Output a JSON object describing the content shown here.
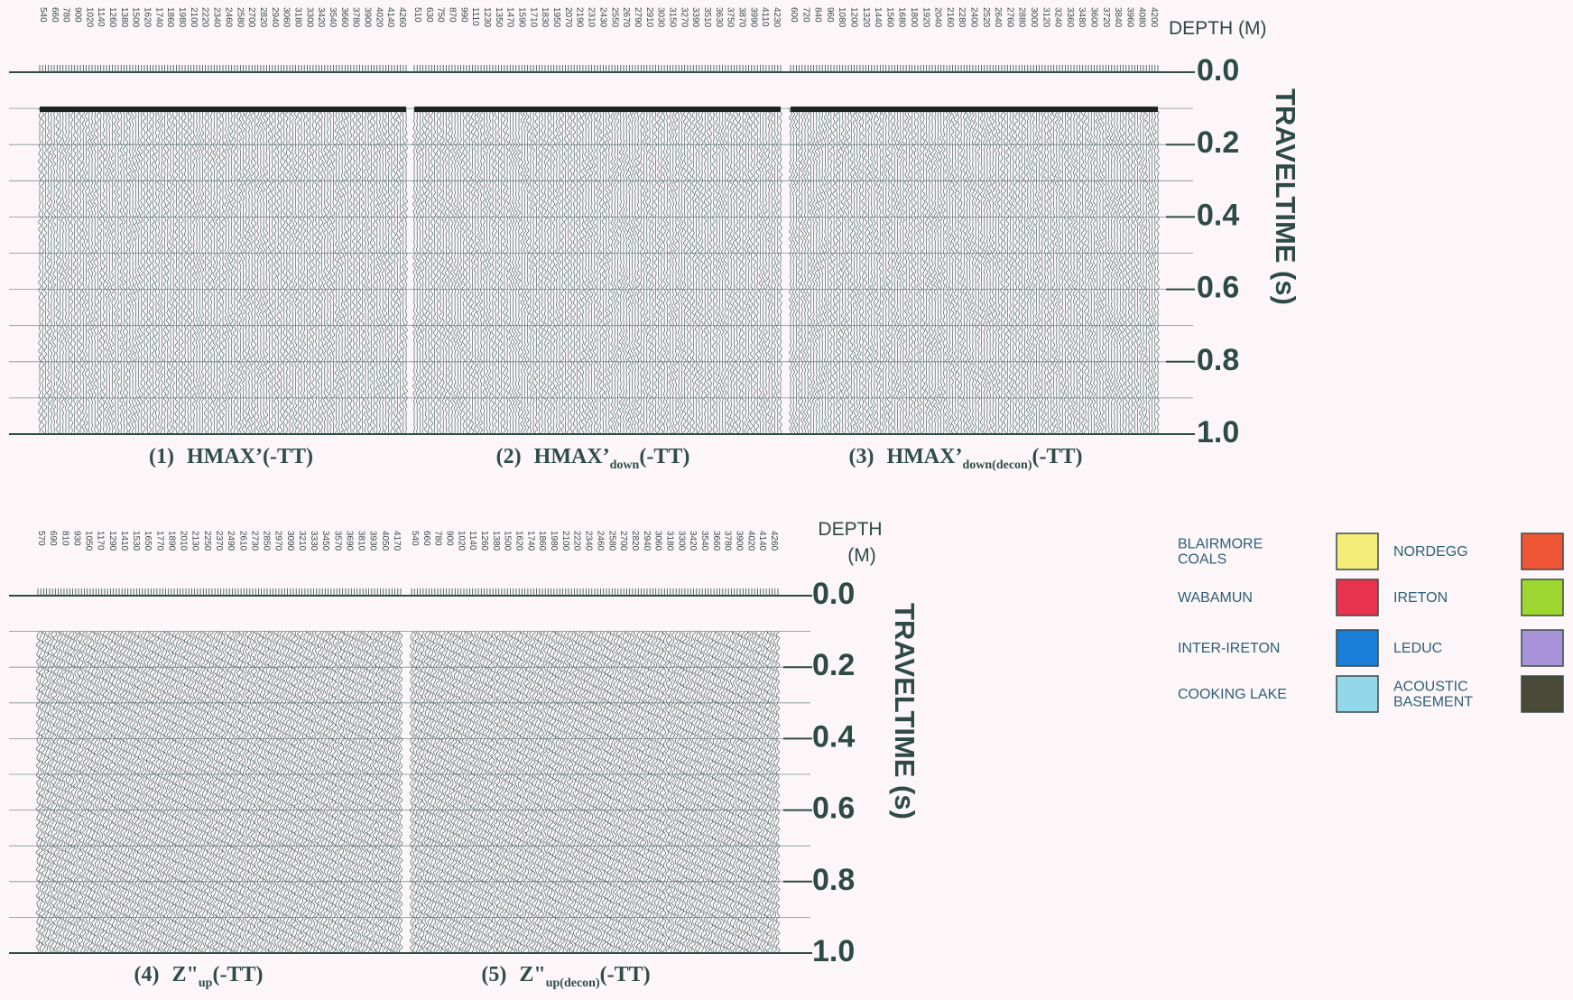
{
  "top": {
    "depth_label": "DEPTH (M)",
    "axis_title": "TRAVELTIME (s)",
    "time_ticks": [
      "0.0",
      "0.2",
      "0.4",
      "0.6",
      "0.8",
      "1.0"
    ],
    "panels": [
      {
        "depths": [
          540,
          660,
          780,
          900,
          1020,
          1140,
          1260,
          1380,
          1500,
          1620,
          1740,
          1860,
          1980,
          2100,
          2220,
          2340,
          2460,
          2580,
          2700,
          2820,
          2940,
          3060,
          3180,
          3300,
          3420,
          3540,
          3660,
          3780,
          3900,
          4020,
          4140,
          4260
        ],
        "caption": {
          "number": "(1)",
          "name": "HMAX’",
          "suffix": "(-TT)"
        }
      },
      {
        "depths": [
          510,
          630,
          750,
          870,
          990,
          1110,
          1230,
          1350,
          1470,
          1590,
          1710,
          1830,
          1950,
          2070,
          2190,
          2310,
          2430,
          2550,
          2670,
          2790,
          2910,
          3030,
          3150,
          3270,
          3390,
          3510,
          3630,
          3750,
          3870,
          3990,
          4110,
          4230
        ],
        "caption": {
          "number": "(2)",
          "name": "HMAX’",
          "sub": "down",
          "suffix": "(-TT)"
        }
      },
      {
        "depths": [
          600,
          720,
          840,
          960,
          1080,
          1200,
          1320,
          1440,
          1560,
          1680,
          1800,
          1920,
          2040,
          2160,
          2280,
          2400,
          2520,
          2640,
          2760,
          2880,
          3000,
          3120,
          3240,
          3360,
          3480,
          3600,
          3720,
          3840,
          3960,
          4080,
          4200
        ],
        "caption": {
          "number": "(3)",
          "name": "HMAX’",
          "sub": "down(decon)",
          "suffix": "(-TT)"
        }
      }
    ]
  },
  "bottom": {
    "depth_label": [
      "DEPTH",
      "(M)"
    ],
    "axis_title": "TRAVELTIME (s)",
    "time_ticks": [
      "0.0",
      "0.2",
      "0.4",
      "0.6",
      "0.8",
      "1.0"
    ],
    "panels": [
      {
        "depths": [
          570,
          690,
          810,
          930,
          1050,
          1170,
          1290,
          1410,
          1530,
          1650,
          1770,
          1890,
          2010,
          2130,
          2250,
          2370,
          2490,
          2610,
          2730,
          2850,
          2970,
          3090,
          3210,
          3330,
          3450,
          3570,
          3690,
          3810,
          3930,
          4050,
          4170
        ],
        "caption": {
          "number": "(4)",
          "name": "Z\"",
          "sub": "up",
          "suffix": "(-TT)"
        }
      },
      {
        "depths": [
          540,
          660,
          780,
          900,
          1020,
          1140,
          1260,
          1380,
          1500,
          1620,
          1740,
          1860,
          1980,
          2100,
          2220,
          2340,
          2460,
          2580,
          2700,
          2820,
          2940,
          3060,
          3180,
          3300,
          3420,
          3540,
          3660,
          3780,
          3900,
          4020,
          4140,
          4260
        ],
        "caption": {
          "number": "(5)",
          "name": "Z\"",
          "sub": "up(decon)",
          "suffix": "(-TT)"
        }
      }
    ]
  },
  "legend": [
    {
      "label": [
        "BLAIRMORE",
        "COALS"
      ],
      "color": "#f4ec78"
    },
    {
      "label": [
        "NORDEGG"
      ],
      "color": "#ee5636"
    },
    {
      "label": [
        "WABAMUN"
      ],
      "color": "#e8344e"
    },
    {
      "label": [
        "IRETON"
      ],
      "color": "#9cd62e"
    },
    {
      "label": [
        "INTER-IRETON"
      ],
      "color": "#1a7fd8"
    },
    {
      "label": [
        "LEDUC"
      ],
      "color": "#a893d8"
    },
    {
      "label": [
        "COOKING LAKE"
      ],
      "color": "#92d8ea"
    },
    {
      "label": [
        "ACOUSTIC",
        "BASEMENT"
      ],
      "color": "#4b4a38"
    }
  ]
}
